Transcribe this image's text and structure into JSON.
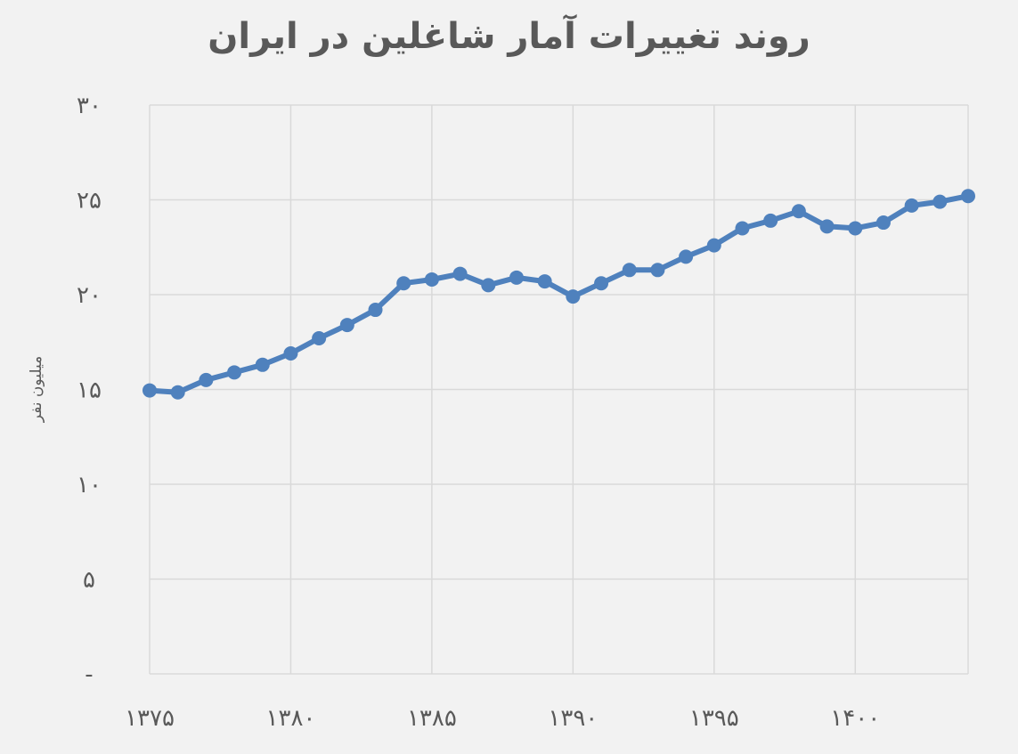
{
  "chart_data": {
    "type": "line",
    "title": "روند تغییرات آمار شاغلین در ایران",
    "xlabel": "",
    "ylabel": "میلیون نفر",
    "x": [
      1375,
      1376,
      1377,
      1378,
      1379,
      1380,
      1381,
      1382,
      1383,
      1384,
      1385,
      1386,
      1387,
      1388,
      1389,
      1390,
      1391,
      1392,
      1393,
      1394,
      1395,
      1396,
      1397,
      1398,
      1399,
      1400,
      1401,
      1402,
      1403,
      1404
    ],
    "series": [
      {
        "values": [
          14.95,
          14.85,
          15.5,
          15.9,
          16.3,
          16.9,
          17.7,
          18.4,
          19.2,
          20.6,
          20.8,
          21.1,
          20.5,
          20.9,
          20.7,
          19.9,
          20.6,
          21.3,
          21.3,
          22.0,
          22.6,
          23.5,
          23.9,
          24.4,
          23.6,
          23.5,
          23.8,
          24.7,
          24.9,
          25.2
        ]
      }
    ],
    "xlim": [
      1375,
      1404
    ],
    "ylim": [
      0,
      30
    ],
    "x_ticks": [
      1375,
      1380,
      1385,
      1390,
      1395,
      1400
    ],
    "x_tick_labels": [
      "۱۳۷۵",
      "۱۳۸۰",
      "۱۳۸۵",
      "۱۳۹۰",
      "۱۳۹۵",
      "۱۴۰۰"
    ],
    "y_ticks": [
      0,
      5,
      10,
      15,
      20,
      25,
      30
    ],
    "y_tick_labels": [
      "-",
      "۵",
      "۱۰",
      "۱۵",
      "۲۰",
      "۲۵",
      "۳۰"
    ],
    "grid": true,
    "legend": "none",
    "colors": {
      "line": "#4f81bd",
      "grid": "#d9d9d9",
      "text": "#595959",
      "background": "#f2f2f2"
    }
  }
}
